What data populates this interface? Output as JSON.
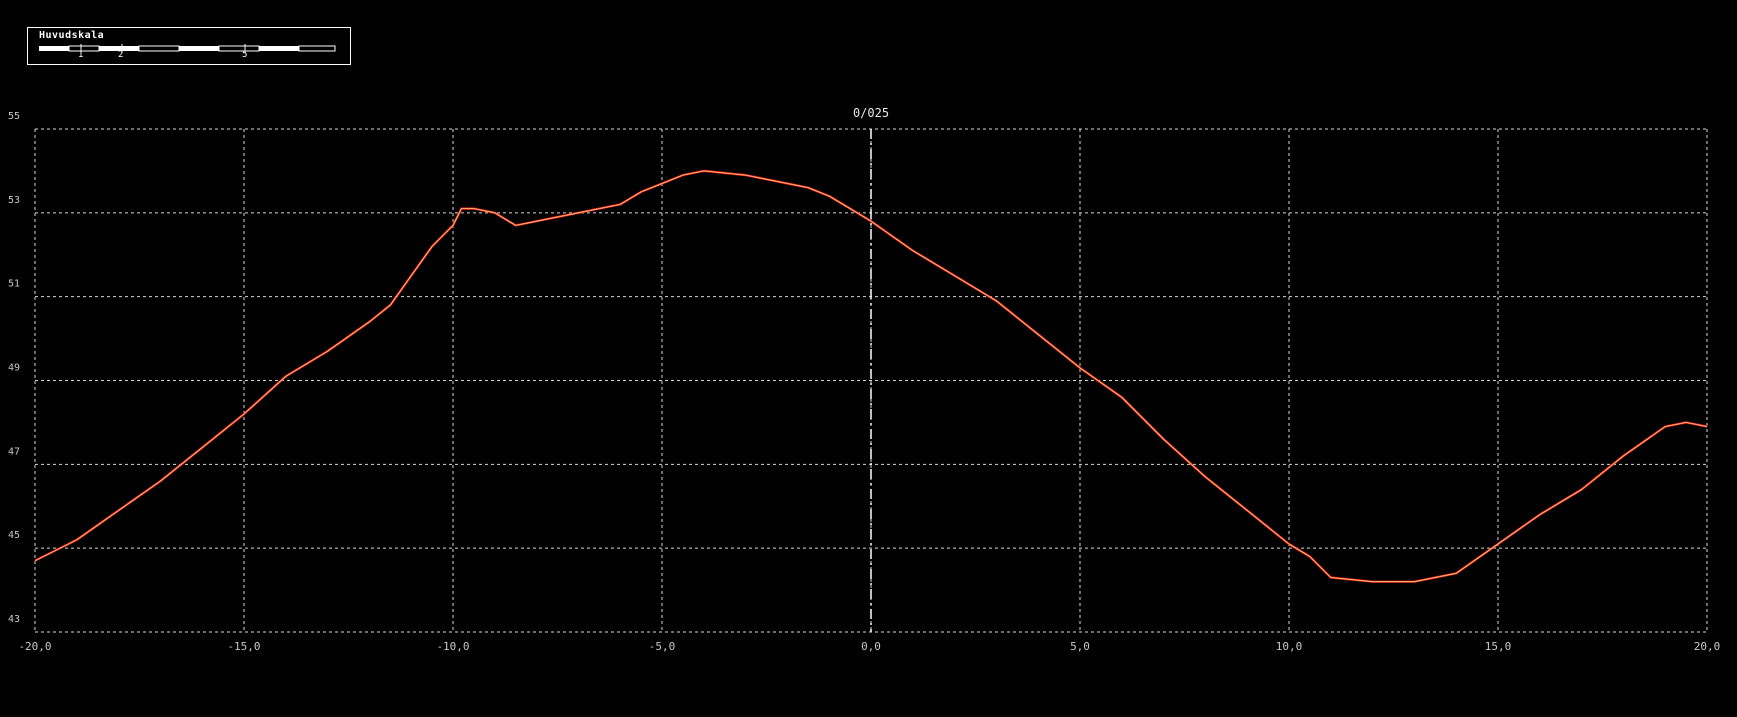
{
  "scale_legend": {
    "title": "Huvudskala",
    "ticks": [
      "1",
      "2",
      "5"
    ]
  },
  "chart_data": {
    "type": "line",
    "title": "",
    "xlabel": "",
    "ylabel": "",
    "center_label": "0/025",
    "xlim": [
      -20,
      20
    ],
    "ylim": [
      43,
      55
    ],
    "grid": true,
    "x_ticks": [
      -20,
      -15,
      -10,
      -5,
      0,
      5,
      10,
      15,
      20
    ],
    "x_tick_labels": [
      "-20,0",
      "-15,0",
      "-10,0",
      "-5,0",
      "0,0",
      "5,0",
      "10,0",
      "15,0",
      "20,0"
    ],
    "y_ticks": [
      43,
      45,
      47,
      49,
      51,
      53,
      55
    ],
    "y_tick_labels": [
      "43",
      "45",
      "47",
      "49",
      "51",
      "53",
      "55"
    ],
    "colors": {
      "background": "#000000",
      "grid": "#d8d8d8",
      "line": "#ff2a0a",
      "line_highlight": "#ffe6b0",
      "text": "#c8c8c8"
    },
    "series": [
      {
        "x": [
          -20,
          -19,
          -18,
          -17,
          -16,
          -15,
          -14,
          -13,
          -12,
          -11.5,
          -11,
          -10.5,
          -10,
          -9.8,
          -9.5,
          -9,
          -8.5,
          -8,
          -7.5,
          -7,
          -6.5,
          -6,
          -5.5,
          -5,
          -4.5,
          -4,
          -3.5,
          -3,
          -2.5,
          -2,
          -1.5,
          -1,
          -0.5,
          0,
          1,
          2,
          3,
          4,
          5,
          6,
          7,
          8,
          9,
          10,
          10.5,
          11,
          12,
          13,
          13.5,
          14,
          15,
          16,
          17,
          18,
          19,
          19.5,
          20
        ],
        "y": [
          44.7,
          45.2,
          45.9,
          46.6,
          47.4,
          48.2,
          49.1,
          49.7,
          50.4,
          50.8,
          51.5,
          52.2,
          52.7,
          53.1,
          53.1,
          53.0,
          52.7,
          52.8,
          52.9,
          53.0,
          53.1,
          53.2,
          53.5,
          53.7,
          53.9,
          54.0,
          53.95,
          53.9,
          53.8,
          53.7,
          53.6,
          53.4,
          53.1,
          52.8,
          52.1,
          51.5,
          50.9,
          50.1,
          49.3,
          48.6,
          47.6,
          46.7,
          45.9,
          45.1,
          44.8,
          44.3,
          44.2,
          44.2,
          44.3,
          44.4,
          45.1,
          45.8,
          46.4,
          47.2,
          47.9,
          48.0,
          47.9
        ]
      }
    ]
  }
}
